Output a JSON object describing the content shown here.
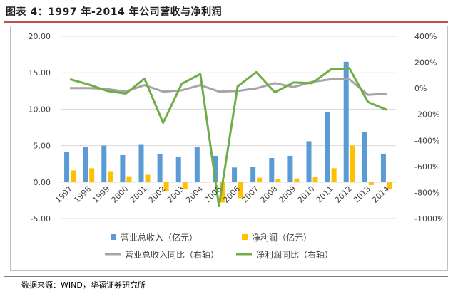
{
  "figure_title": "图表 4：1997 年-2014 年公司营收与净利润",
  "source_note": "数据来源：WIND，华福证券研究所",
  "chart_data": {
    "type": "bar",
    "categories": [
      "1997",
      "1998",
      "1999",
      "2000",
      "2001",
      "2002",
      "2003",
      "2004",
      "2005",
      "2006",
      "2007",
      "2008",
      "2009",
      "2010",
      "2011",
      "2012",
      "2013",
      "2014"
    ],
    "left_axis": {
      "min": -5,
      "max": 20,
      "ticks": [
        "20.00",
        "15.00",
        "10.00",
        "5.00",
        "0.00",
        "-5.00"
      ]
    },
    "right_axis": {
      "min": -1000,
      "max": 400,
      "ticks": [
        "400%",
        "200%",
        "0%",
        "-200%",
        "-400%",
        "-600%",
        "-800%",
        "-1000%"
      ]
    },
    "series": [
      {
        "name": "营业总收入（亿元）",
        "type": "bar",
        "axis": "left",
        "color": "#5b9bd5",
        "values": [
          4.1,
          4.8,
          5.0,
          3.7,
          5.2,
          3.8,
          3.5,
          4.8,
          3.6,
          2.0,
          2.1,
          3.3,
          3.6,
          5.6,
          9.6,
          16.5,
          6.9,
          3.9
        ]
      },
      {
        "name": "净利润（亿元）",
        "type": "bar",
        "axis": "left",
        "color": "#ffc000",
        "values": [
          1.6,
          1.9,
          1.5,
          0.8,
          1.0,
          -1.3,
          -0.9,
          0.0,
          -2.8,
          -2.2,
          0.6,
          0.4,
          0.5,
          0.7,
          1.9,
          5.0,
          -0.4,
          -1.0
        ]
      },
      {
        "name": "营业总收入同比（右轴）",
        "type": "line",
        "axis": "right",
        "color": "#a5a5a5",
        "values": [
          2,
          2,
          -5,
          -25,
          25,
          -25,
          -15,
          25,
          -25,
          -20,
          0,
          40,
          10,
          50,
          70,
          70,
          -50,
          -40
        ]
      },
      {
        "name": "净利润同比（右轴）",
        "type": "line",
        "axis": "right",
        "color": "#70ad47",
        "values": [
          70,
          30,
          -20,
          -40,
          75,
          -265,
          35,
          110,
          -905,
          15,
          125,
          -30,
          45,
          40,
          145,
          155,
          -105,
          -165
        ]
      }
    ],
    "legend_position": "bottom",
    "grid": true
  }
}
